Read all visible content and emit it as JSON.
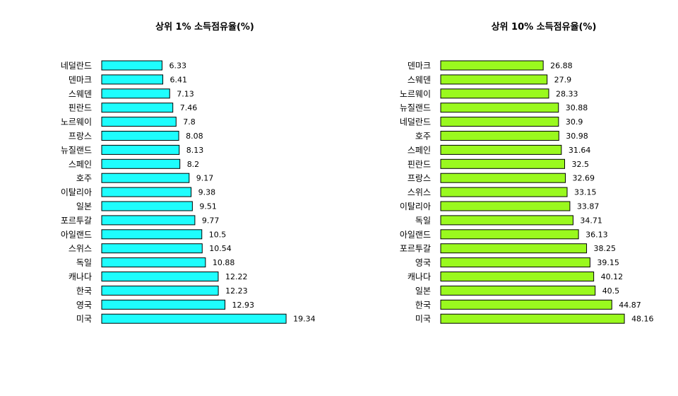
{
  "chart_data": [
    {
      "type": "bar",
      "orientation": "horizontal",
      "title": "상위 1% 소득점유율(%)",
      "color": "#1EFDFD",
      "xlim": [
        0,
        20
      ],
      "categories": [
        "네덜란드",
        "덴마크",
        "스웨덴",
        "핀란드",
        "노르웨이",
        "프랑스",
        "뉴질랜드",
        "스페인",
        "호주",
        "이탈리아",
        "일본",
        "포르투갈",
        "아일랜드",
        "스위스",
        "독일",
        "캐나다",
        "한국",
        "영국",
        "미국"
      ],
      "values": [
        6.33,
        6.41,
        7.13,
        7.46,
        7.8,
        8.08,
        8.13,
        8.2,
        9.17,
        9.38,
        9.51,
        9.77,
        10.5,
        10.54,
        10.88,
        12.22,
        12.23,
        12.93,
        19.34
      ],
      "value_labels": [
        "6.33",
        "6.41",
        "7.13",
        "7.46",
        "7.8",
        "8.08",
        "8.13",
        "8.2",
        "9.17",
        "9.38",
        "9.51",
        "9.77",
        "10.5",
        "10.54",
        "10.88",
        "12.22",
        "12.23",
        "12.93",
        "19.34"
      ]
    },
    {
      "type": "bar",
      "orientation": "horizontal",
      "title": "상위 10% 소득점유율(%)",
      "color": "#9AF91E",
      "xlim": [
        0,
        50
      ],
      "categories": [
        "덴마크",
        "스웨덴",
        "노르웨이",
        "뉴질랜드",
        "네덜란드",
        "호주",
        "스페인",
        "핀란드",
        "프랑스",
        "스위스",
        "이탈리아",
        "독일",
        "아일랜드",
        "포르투갈",
        "영국",
        "캐나다",
        "일본",
        "한국",
        "미국"
      ],
      "values": [
        26.88,
        27.9,
        28.33,
        30.88,
        30.9,
        30.98,
        31.64,
        32.5,
        32.69,
        33.15,
        33.87,
        34.71,
        36.13,
        38.25,
        39.15,
        40.12,
        40.5,
        44.87,
        48.16
      ],
      "value_labels": [
        "26.88",
        "27.9",
        "28.33",
        "30.88",
        "30.9",
        "30.98",
        "31.64",
        "32.5",
        "32.69",
        "33.15",
        "33.87",
        "34.71",
        "36.13",
        "38.25",
        "39.15",
        "40.12",
        "40.5",
        "44.87",
        "48.16"
      ]
    }
  ]
}
